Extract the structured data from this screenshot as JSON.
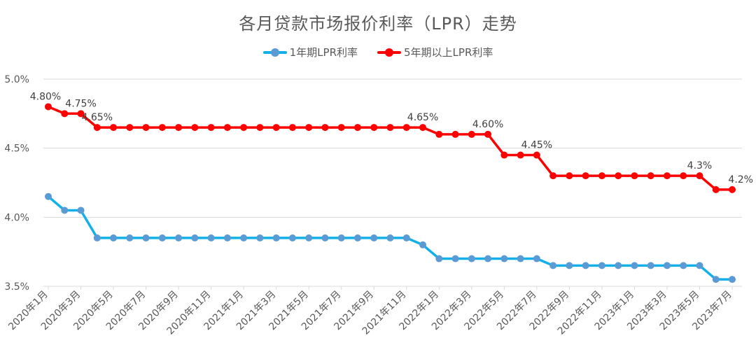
{
  "colors": {
    "series1_line": "#12b0e8",
    "series1_marker": "#5b9bd5",
    "series2": "#ff0000",
    "grid": "#d9d9d9",
    "text": "#595959"
  },
  "chart_data": {
    "type": "line",
    "title": "各月贷款市场报价利率（LPR）走势",
    "legend_position": "top",
    "grid": true,
    "ylim": [
      3.5,
      5.0
    ],
    "y_ticks": [
      "3.5%",
      "4.0%",
      "4.5%",
      "5.0%"
    ],
    "y_tick_values": [
      3.5,
      4.0,
      4.5,
      5.0
    ],
    "x_tick_labels": [
      "2020年1月",
      "2020年3月",
      "2020年5月",
      "2020年7月",
      "2020年9月",
      "2020年11月",
      "2021年1月",
      "2021年3月",
      "2021年5月",
      "2021年7月",
      "2021年9月",
      "2021年11月",
      "2022年1月",
      "2022年3月",
      "2022年5月",
      "2022年7月",
      "2022年9月",
      "2022年11月",
      "2023年1月",
      "2023年3月",
      "2023年5月",
      "2023年7月"
    ],
    "x": [
      "2020年1月",
      "2020年2月",
      "2020年3月",
      "2020年4月",
      "2020年5月",
      "2020年6月",
      "2020年7月",
      "2020年8月",
      "2020年9月",
      "2020年10月",
      "2020年11月",
      "2020年12月",
      "2021年1月",
      "2021年2月",
      "2021年3月",
      "2021年4月",
      "2021年5月",
      "2021年6月",
      "2021年7月",
      "2021年8月",
      "2021年9月",
      "2021年10月",
      "2021年11月",
      "2021年12月",
      "2022年1月",
      "2022年2月",
      "2022年3月",
      "2022年4月",
      "2022年5月",
      "2022年6月",
      "2022年7月",
      "2022年8月",
      "2022年9月",
      "2022年10月",
      "2022年11月",
      "2022年12月",
      "2023年1月",
      "2023年2月",
      "2023年3月",
      "2023年4月",
      "2023年5月",
      "2023年6月",
      "2023年7月"
    ],
    "series": [
      {
        "name": "1年期LPR利率",
        "values": [
          4.15,
          4.05,
          4.05,
          3.85,
          3.85,
          3.85,
          3.85,
          3.85,
          3.85,
          3.85,
          3.85,
          3.85,
          3.85,
          3.85,
          3.85,
          3.85,
          3.85,
          3.85,
          3.85,
          3.85,
          3.85,
          3.85,
          3.85,
          3.8,
          3.7,
          3.7,
          3.7,
          3.7,
          3.7,
          3.7,
          3.7,
          3.65,
          3.65,
          3.65,
          3.65,
          3.65,
          3.65,
          3.65,
          3.65,
          3.65,
          3.65,
          3.55,
          3.55
        ]
      },
      {
        "name": "5年期以上LPR利率",
        "values": [
          4.8,
          4.75,
          4.75,
          4.65,
          4.65,
          4.65,
          4.65,
          4.65,
          4.65,
          4.65,
          4.65,
          4.65,
          4.65,
          4.65,
          4.65,
          4.65,
          4.65,
          4.65,
          4.65,
          4.65,
          4.65,
          4.65,
          4.65,
          4.65,
          4.6,
          4.6,
          4.6,
          4.6,
          4.45,
          4.45,
          4.45,
          4.3,
          4.3,
          4.3,
          4.3,
          4.3,
          4.3,
          4.3,
          4.3,
          4.3,
          4.3,
          4.2,
          4.2
        ]
      }
    ],
    "data_labels": [
      {
        "series": 1,
        "index": 0,
        "text": "4.80%"
      },
      {
        "series": 1,
        "index": 2,
        "text": "4.75%"
      },
      {
        "series": 1,
        "index": 3,
        "text": "4.65%"
      },
      {
        "series": 1,
        "index": 23,
        "text": "4.65%"
      },
      {
        "series": 1,
        "index": 27,
        "text": "4.60%"
      },
      {
        "series": 1,
        "index": 30,
        "text": "4.45%"
      },
      {
        "series": 1,
        "index": 40,
        "text": "4.3%"
      },
      {
        "series": 1,
        "index": 42,
        "text": "4.2%"
      }
    ]
  }
}
